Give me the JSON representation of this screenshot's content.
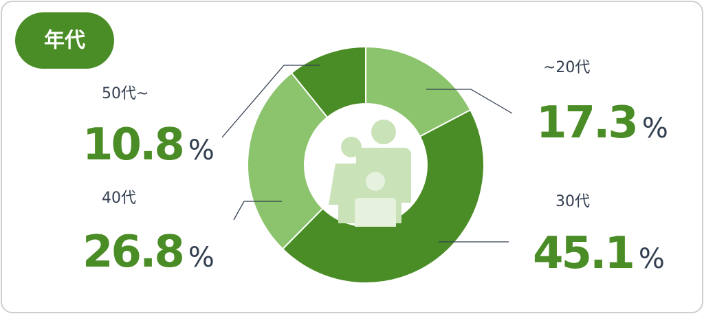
{
  "chart_data": {
    "type": "donut",
    "title": "年代",
    "categories": [
      "~20代",
      "30代",
      "40代",
      "50代~"
    ],
    "values": [
      17.3,
      45.1,
      26.8,
      10.8
    ],
    "colors": [
      "#8bc46c",
      "#4a8c25",
      "#8bc46c",
      "#4a8c25"
    ],
    "unit": "%"
  }
}
